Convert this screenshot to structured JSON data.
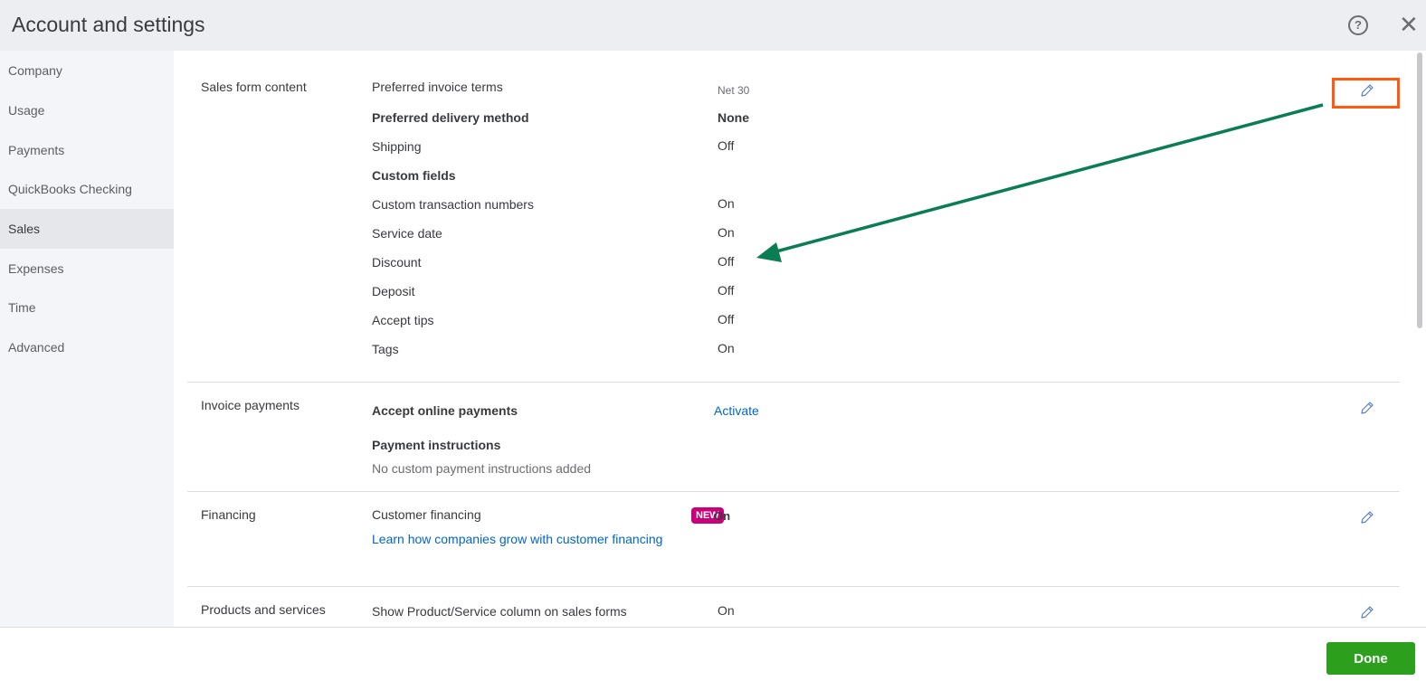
{
  "header": {
    "title": "Account and settings",
    "help_icon": "help-circle-icon",
    "close_icon": "close-icon",
    "close_glyph": "✕",
    "help_glyph": "?"
  },
  "sidebar": {
    "items": [
      {
        "label": "Company"
      },
      {
        "label": "Usage"
      },
      {
        "label": "Payments"
      },
      {
        "label": "QuickBooks Checking"
      },
      {
        "label": "Sales",
        "active": true
      },
      {
        "label": "Expenses"
      },
      {
        "label": "Time"
      },
      {
        "label": "Advanced"
      }
    ]
  },
  "sales_form": {
    "section": "Sales form content",
    "rows": [
      {
        "label": "Preferred invoice terms",
        "value": "Net 30"
      },
      {
        "label": "Preferred delivery method",
        "value": "None"
      },
      {
        "label": "Shipping",
        "value": "Off"
      },
      {
        "label": "Custom fields",
        "value": ""
      },
      {
        "label": "Custom transaction numbers",
        "value": "On"
      },
      {
        "label": "Service date",
        "value": "On"
      },
      {
        "label": "Discount",
        "value": "Off"
      },
      {
        "label": "Deposit",
        "value": "Off"
      },
      {
        "label": "Accept tips",
        "value": "Off"
      },
      {
        "label": "Tags",
        "value": "On"
      }
    ]
  },
  "invoice_payments": {
    "section": "Invoice payments",
    "accept_label": "Accept online payments",
    "accept_value": "Activate",
    "instructions_label": "Payment instructions",
    "instructions_value": "No custom payment instructions added"
  },
  "financing": {
    "section": "Financing",
    "label": "Customer financing",
    "badge": "NEW",
    "value": "On",
    "link": "Learn how companies grow with customer financing"
  },
  "products": {
    "section": "Products and services",
    "label": "Show Product/Service column on sales forms",
    "value": "On"
  },
  "footer": {
    "done_label": "Done"
  },
  "colors": {
    "accent_green": "#2ca01c",
    "highlight_orange": "#ff5a10",
    "arrow_green": "#0b7d55",
    "link_blue": "#0067c5",
    "badge_magenta": "#c9007a"
  },
  "icons": {
    "edit": "pencil-icon"
  }
}
